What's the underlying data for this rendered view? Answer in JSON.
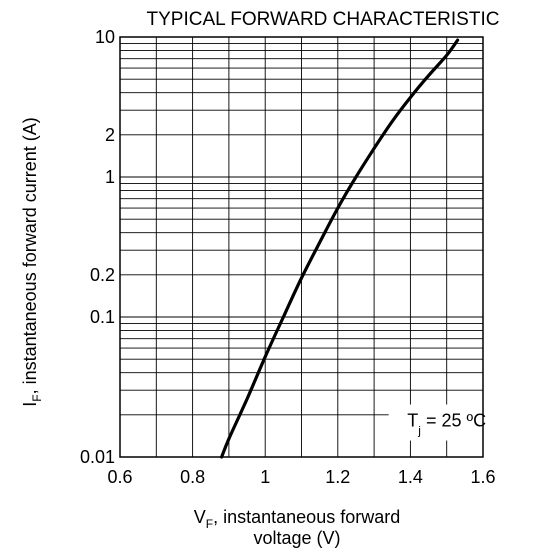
{
  "chart_data": {
    "type": "line",
    "title": "TYPICAL FORWARD CHARACTERISTIC",
    "x_axis": {
      "label_main": "V",
      "label_sub": "F",
      "label_rest": ", instantaneous forward",
      "label_line2": "voltage (V)",
      "range": [
        0.6,
        1.6
      ],
      "ticks": [
        0.6,
        0.8,
        1,
        1.2,
        1.4,
        1.6
      ],
      "tick_labels": [
        "0.6",
        "0.8",
        "1",
        "1.2",
        "1.4",
        "1.6"
      ],
      "scale": "linear"
    },
    "y_axis": {
      "label_main": "I",
      "label_sub": "F",
      "label_rest": ", instantaneous forward current  (A)",
      "range": [
        0.01,
        10
      ],
      "scale": "log",
      "ticks": [
        0.01,
        0.1,
        0.2,
        1,
        2,
        10
      ],
      "tick_labels": [
        "0.01",
        "0.1",
        "0.2",
        "1",
        "2",
        "10"
      ]
    },
    "grid": true,
    "series": [
      {
        "points": [
          [
            0.88,
            0.01
          ],
          [
            0.9,
            0.0135
          ],
          [
            0.95,
            0.026
          ],
          [
            1.0,
            0.052
          ],
          [
            1.05,
            0.1
          ],
          [
            1.1,
            0.19
          ],
          [
            1.15,
            0.34
          ],
          [
            1.2,
            0.6
          ],
          [
            1.25,
            1.0
          ],
          [
            1.3,
            1.6
          ],
          [
            1.35,
            2.5
          ],
          [
            1.4,
            3.7
          ],
          [
            1.45,
            5.3
          ],
          [
            1.5,
            7.4
          ],
          [
            1.53,
            9.5
          ]
        ]
      }
    ],
    "annotation": {
      "main": "T",
      "sub": "j",
      "rest": " = 25 ºC",
      "x": 1.5,
      "y": 0.0165
    }
  }
}
